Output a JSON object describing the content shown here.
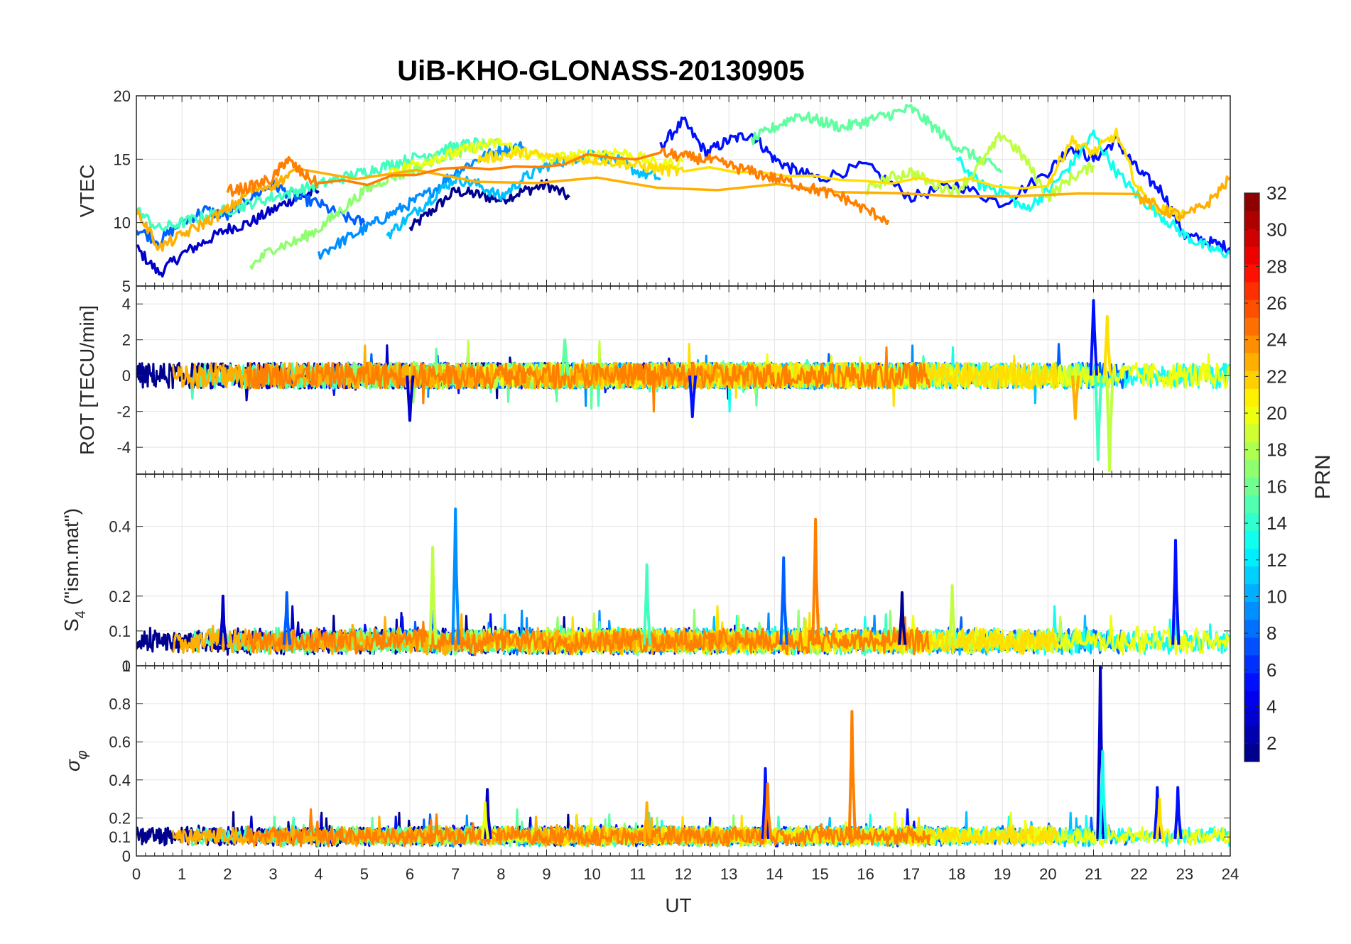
{
  "chart_data": [
    {
      "type": "line",
      "panel": "vtec",
      "title": "UiB-KHO-GLONASS-20130905",
      "ylabel": "VTEC",
      "xlabel": "",
      "xlim": [
        0,
        24
      ],
      "ylim": [
        5,
        20
      ],
      "yticks": [
        5,
        10,
        15,
        20
      ],
      "grid": true,
      "series": [
        {
          "name": "PRN 2",
          "color": "#00008f",
          "x": [
            6.0,
            6.5,
            7.0,
            7.5,
            8.0,
            8.5,
            9.0,
            9.5
          ],
          "y": [
            9.5,
            11.0,
            12.5,
            12.2,
            11.8,
            12.5,
            13.0,
            12.0
          ]
        },
        {
          "name": "PRN 3",
          "color": "#0000c8",
          "x": [
            0.0,
            0.5,
            1.0,
            1.5,
            2.0,
            2.5,
            3.0,
            3.5,
            4.0
          ],
          "y": [
            8.0,
            6.0,
            7.5,
            8.5,
            9.5,
            10.0,
            11.0,
            12.0,
            12.5
          ]
        },
        {
          "name": "PRN 5",
          "color": "#0010ff",
          "x": [
            11.5,
            12.0,
            12.5,
            13.0,
            13.5,
            14.0,
            14.5,
            15.0,
            16.0,
            17.0,
            18.0,
            19.0,
            20.0,
            20.5,
            21.0,
            21.5,
            22.0,
            22.5,
            23.0,
            23.5,
            24.0
          ],
          "y": [
            16.0,
            18.0,
            15.5,
            16.5,
            17.0,
            15.0,
            14.0,
            13.5,
            14.5,
            12.0,
            13.0,
            11.5,
            14.0,
            16.0,
            15.0,
            16.5,
            14.0,
            12.5,
            9.0,
            8.5,
            8.0
          ]
        },
        {
          "name": "PRN 8",
          "color": "#0060ff",
          "x": [
            0.0,
            0.5,
            1.0,
            1.5,
            2.0,
            2.5,
            3.0,
            3.5,
            4.0,
            4.5,
            5.0
          ],
          "y": [
            9.5,
            8.5,
            10.0,
            11.0,
            10.5,
            12.0,
            13.0,
            12.0,
            11.5,
            10.5,
            10.0
          ]
        },
        {
          "name": "PRN 10",
          "color": "#008fff",
          "x": [
            4.0,
            4.5,
            5.0,
            5.5,
            6.0,
            6.5,
            7.0,
            7.5,
            8.0,
            8.5
          ],
          "y": [
            7.5,
            8.5,
            9.5,
            10.5,
            11.5,
            12.5,
            14.0,
            15.0,
            15.8,
            16.0
          ]
        },
        {
          "name": "PRN 12",
          "color": "#00c0ff",
          "x": [
            5.5,
            6.0,
            6.5,
            7.0,
            7.5,
            8.0,
            8.5,
            9.0,
            9.5,
            10.0,
            10.5,
            11.0,
            11.5
          ],
          "y": [
            9.0,
            10.5,
            12.0,
            13.5,
            13.0,
            12.0,
            13.5,
            14.5,
            15.0,
            15.5,
            15.0,
            14.0,
            13.5
          ]
        },
        {
          "name": "PRN 13",
          "color": "#10ffef",
          "x": [
            18.0,
            18.5,
            19.0,
            19.5,
            20.0,
            20.5,
            21.0,
            21.5,
            22.0,
            22.5,
            23.0,
            23.5,
            24.0
          ],
          "y": [
            15.0,
            13.0,
            12.5,
            11.0,
            12.5,
            14.5,
            17.0,
            14.0,
            12.0,
            10.5,
            9.0,
            8.0,
            7.5
          ]
        },
        {
          "name": "PRN 15",
          "color": "#40ffbf",
          "x": [
            0.0,
            0.5,
            1.0,
            1.5,
            2.0,
            2.5,
            3.0,
            3.5,
            4.0,
            4.5,
            5.0,
            5.5,
            6.0,
            6.5,
            7.0,
            7.5
          ],
          "y": [
            11.0,
            9.5,
            10.0,
            10.5,
            11.0,
            11.5,
            12.0,
            12.5,
            13.0,
            13.5,
            14.0,
            14.5,
            15.0,
            15.5,
            16.0,
            16.3
          ]
        },
        {
          "name": "PRN 16",
          "color": "#60ff9f",
          "x": [
            13.5,
            14.0,
            14.5,
            15.0,
            15.5,
            16.0,
            16.5,
            17.0,
            17.5,
            18.0,
            18.5,
            19.0
          ],
          "y": [
            16.5,
            17.5,
            18.5,
            18.0,
            17.5,
            18.0,
            18.5,
            19.0,
            17.5,
            16.0,
            15.0,
            14.0
          ]
        },
        {
          "name": "PRN 17",
          "color": "#8fff70",
          "x": [
            2.5,
            3.0,
            3.5,
            4.0,
            4.5,
            5.0,
            5.5,
            6.0,
            6.5,
            7.0,
            7.5,
            8.0
          ],
          "y": [
            6.5,
            8.0,
            8.5,
            9.5,
            11.0,
            12.5,
            13.5,
            14.0,
            15.0,
            15.5,
            16.0,
            16.5
          ]
        },
        {
          "name": "PRN 18",
          "color": "#bfff40",
          "x": [
            16.0,
            16.5,
            17.0,
            17.5,
            18.0,
            18.5,
            19.0,
            19.5,
            20.0,
            20.5,
            21.0
          ],
          "y": [
            12.5,
            13.5,
            14.0,
            13.0,
            12.5,
            14.5,
            17.0,
            15.0,
            12.0,
            13.5,
            14.5
          ]
        },
        {
          "name": "PRN 20",
          "color": "#efff10",
          "x": [
            5.5,
            6.0,
            6.5,
            7.0,
            7.5,
            8.0,
            8.5,
            9.0,
            9.5,
            10.0,
            10.5,
            11.0,
            11.5,
            12.0
          ],
          "y": [
            14.0,
            14.5,
            15.0,
            15.5,
            16.0,
            16.3,
            15.5,
            15.0,
            15.2,
            15.4,
            15.6,
            15.2,
            14.5,
            14.8
          ]
        },
        {
          "name": "PRN 21",
          "color": "#ffdf00",
          "x": [
            7.5,
            8.0,
            8.5,
            9.0,
            9.5,
            10.0,
            10.5,
            11.0,
            11.5,
            12.0,
            20.0,
            20.5,
            21.0,
            21.5,
            22.0,
            22.5,
            23.0
          ],
          "y": [
            15.0,
            15.3,
            15.5,
            15.2,
            15.0,
            15.0,
            14.8,
            14.5,
            14.2,
            14.0,
            13.0,
            16.5,
            15.5,
            17.0,
            12.5,
            11.0,
            10.5
          ]
        },
        {
          "name": "PRN 23",
          "color": "#ffaf00",
          "x": [
            0.0,
            0.5,
            1.0,
            1.5,
            2.0,
            2.5,
            3.0,
            3.5,
            22.0,
            22.5,
            23.0,
            23.5,
            24.0
          ],
          "y": [
            11.0,
            8.0,
            9.0,
            10.0,
            11.0,
            12.5,
            13.0,
            14.0,
            12.0,
            11.0,
            10.5,
            11.5,
            13.5
          ]
        },
        {
          "name": "PRN 24",
          "color": "#ff7f00",
          "x": [
            2.0,
            2.5,
            3.0,
            3.3,
            3.6,
            4.0,
            11.5,
            12.0,
            12.5,
            13.0,
            13.5,
            14.0,
            14.5,
            15.0,
            15.5,
            16.0,
            16.5
          ],
          "y": [
            12.5,
            12.8,
            13.5,
            15.0,
            14.0,
            13.0,
            15.5,
            15.2,
            15.0,
            14.5,
            14.0,
            13.5,
            13.0,
            12.5,
            12.0,
            11.0,
            10.2
          ]
        }
      ]
    },
    {
      "type": "line",
      "panel": "rot",
      "ylabel": "ROT [TECU/min]",
      "xlim": [
        0,
        24
      ],
      "ylim": [
        -5.5,
        5
      ],
      "yticks": [
        -4,
        -2,
        0,
        2,
        4
      ],
      "grid": true,
      "spikes": [
        {
          "x": 6.0,
          "y": -2.5,
          "color": "#0000c8"
        },
        {
          "x": 12.2,
          "y": -2.3,
          "color": "#0010ff"
        },
        {
          "x": 21.0,
          "y": 4.2,
          "color": "#0010ff"
        },
        {
          "x": 21.1,
          "y": -4.7,
          "color": "#40ffbf"
        },
        {
          "x": 21.3,
          "y": 3.3,
          "color": "#ffdf00"
        },
        {
          "x": 21.35,
          "y": -5.3,
          "color": "#bfff40"
        },
        {
          "x": 20.6,
          "y": -2.4,
          "color": "#ffaf00"
        },
        {
          "x": 9.4,
          "y": 2.0,
          "color": "#60ff9f"
        }
      ]
    },
    {
      "type": "line",
      "panel": "s4",
      "ylabel": "S",
      "ylabel_sub": "4",
      "ylabel_suffix": " (\"ism.mat\")",
      "xlim": [
        0,
        24
      ],
      "ylim": [
        0,
        0.55
      ],
      "yticks": [
        0,
        0.1,
        0.2,
        0.4
      ],
      "top_tick_label": "1",
      "grid": true,
      "spikes": [
        {
          "x": 6.5,
          "y": 0.34,
          "color": "#bfff40"
        },
        {
          "x": 7.0,
          "y": 0.45,
          "color": "#008fff"
        },
        {
          "x": 11.2,
          "y": 0.29,
          "color": "#40ffbf"
        },
        {
          "x": 14.2,
          "y": 0.31,
          "color": "#0060ff"
        },
        {
          "x": 14.9,
          "y": 0.42,
          "color": "#ff7f00"
        },
        {
          "x": 22.8,
          "y": 0.36,
          "color": "#0010ff"
        },
        {
          "x": 16.8,
          "y": 0.21,
          "color": "#00008f"
        },
        {
          "x": 1.9,
          "y": 0.2,
          "color": "#0000c8"
        },
        {
          "x": 3.3,
          "y": 0.21,
          "color": "#0060ff"
        },
        {
          "x": 17.9,
          "y": 0.23,
          "color": "#bfff40"
        }
      ]
    },
    {
      "type": "line",
      "panel": "sigma",
      "ylabel": "σ",
      "ylabel_sub": "φ",
      "xlabel": "UT",
      "xlim": [
        0,
        24
      ],
      "ylim": [
        0,
        1
      ],
      "yticks": [
        0,
        0.1,
        0.2,
        0.4,
        0.6,
        0.8
      ],
      "xticks": [
        0,
        1,
        2,
        3,
        4,
        5,
        6,
        7,
        8,
        9,
        10,
        11,
        12,
        13,
        14,
        15,
        16,
        17,
        18,
        19,
        20,
        21,
        22,
        23,
        24
      ],
      "grid": true,
      "spikes": [
        {
          "x": 7.7,
          "y": 0.35,
          "color": "#0000c8"
        },
        {
          "x": 7.65,
          "y": 0.28,
          "color": "#efff10"
        },
        {
          "x": 11.2,
          "y": 0.28,
          "color": "#ffaf00"
        },
        {
          "x": 13.8,
          "y": 0.46,
          "color": "#0010ff"
        },
        {
          "x": 13.85,
          "y": 0.38,
          "color": "#ff7f00"
        },
        {
          "x": 15.7,
          "y": 0.76,
          "color": "#ff7f00"
        },
        {
          "x": 21.15,
          "y": 1.0,
          "color": "#0000c8"
        },
        {
          "x": 21.2,
          "y": 0.55,
          "color": "#10ffef"
        },
        {
          "x": 22.4,
          "y": 0.36,
          "color": "#0010ff"
        },
        {
          "x": 22.85,
          "y": 0.36,
          "color": "#0010ff"
        },
        {
          "x": 22.45,
          "y": 0.3,
          "color": "#ffdf00"
        }
      ]
    }
  ],
  "colorbar": {
    "label": "PRN",
    "min": 1,
    "max": 32,
    "ticks": [
      2,
      4,
      6,
      8,
      10,
      12,
      14,
      16,
      18,
      20,
      22,
      24,
      26,
      28,
      30,
      32
    ]
  }
}
